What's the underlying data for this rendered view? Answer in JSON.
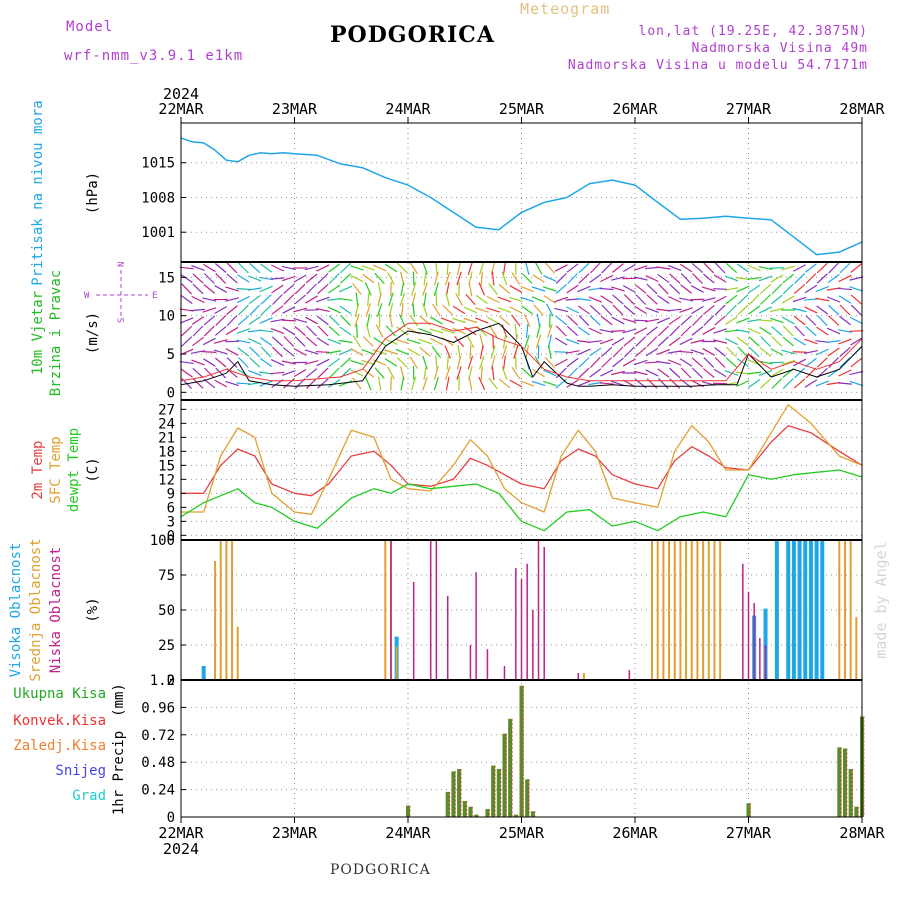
{
  "header": {
    "model_label": "Model",
    "model_name": "wrf-nmm_v3.9.1 e1km",
    "title": "PODGORICA",
    "subtitle": "Meteogram",
    "lonlat": "lon,lat (19.25E, 42.3875N)",
    "elevation": "Nadmorska Visina 49m",
    "model_elevation": "Nadmorska Visina u modelu 54.7171m",
    "footer": "PODGORICA",
    "watermark": "made by Angel"
  },
  "colors": {
    "pressure": "#1ea7e6",
    "wind_label": "#22bb22",
    "wind_speed_line": "#000000",
    "gust": "#ee3333",
    "temp2m": "#e84040",
    "sfc_temp": "#e0a030",
    "dewpt": "#22cc22",
    "cloud_high": "#1ea7e6",
    "cloud_mid": "#e0a030",
    "cloud_low": "#c0208a",
    "precip_total": "#22aa22",
    "precip_conv": "#ee3333",
    "precip_frozen": "#f08030",
    "snow": "#4444ee",
    "hail": "#22cccc",
    "purple_text": "#b040d0"
  },
  "time_axis": {
    "year": "2024",
    "ticks": [
      "22MAR",
      "23MAR",
      "24MAR",
      "25MAR",
      "26MAR",
      "27MAR",
      "28MAR"
    ]
  },
  "chart_data": [
    {
      "type": "line",
      "panel": "pressure",
      "ylabel_title": "Pritisak na nivou mora",
      "unit": "(hPa)",
      "yticks": [
        "1001",
        "1008",
        "1015"
      ],
      "ylim": [
        995,
        1023
      ],
      "x": [
        0,
        0.1,
        0.2,
        0.3,
        0.4,
        0.5,
        0.6,
        0.7,
        0.8,
        0.9,
        1.0,
        1.2,
        1.4,
        1.6,
        1.8,
        2.0,
        2.2,
        2.4,
        2.6,
        2.8,
        3.0,
        3.2,
        3.4,
        3.6,
        3.8,
        4.0,
        4.2,
        4.4,
        4.6,
        4.8,
        5.0,
        5.2,
        5.4,
        5.6,
        5.8,
        6.0
      ],
      "values": [
        1020,
        1019.2,
        1019,
        1017.5,
        1015.5,
        1015.2,
        1016.5,
        1017,
        1016.8,
        1017,
        1016.8,
        1016.5,
        1014.8,
        1014,
        1012,
        1010.5,
        1008,
        1005,
        1002,
        1001.5,
        1005,
        1007,
        1008,
        1010.8,
        1011.5,
        1010.5,
        1007,
        1003.6,
        1003.8,
        1004.2,
        1003.8,
        1003.5,
        1000,
        996.5,
        997,
        999
      ]
    },
    {
      "type": "line",
      "panel": "wind",
      "ylabel_title": "10m Vjetar",
      "ylabel_sub": "Brzina i Pravac",
      "unit": "(m/s)",
      "compass": [
        "N",
        "W",
        "E",
        "S"
      ],
      "yticks": [
        "0",
        "5",
        "10",
        "15"
      ],
      "ylim": [
        -1,
        17
      ],
      "series": [
        {
          "name": "wind_speed",
          "x": [
            0,
            0.2,
            0.4,
            0.5,
            0.6,
            0.8,
            1.0,
            1.3,
            1.6,
            1.8,
            2.0,
            2.2,
            2.4,
            2.6,
            2.8,
            3.0,
            3.1,
            3.2,
            3.4,
            3.5,
            3.6,
            3.8,
            4.0,
            4.2,
            4.5,
            4.7,
            4.9,
            5.0,
            5.2,
            5.4,
            5.6,
            5.8,
            6.0
          ],
          "values": [
            1,
            1.5,
            2.5,
            4,
            1.5,
            1,
            0.8,
            1,
            1.5,
            6,
            8,
            7.5,
            6.5,
            8,
            9,
            6,
            2,
            4,
            1.2,
            0.8,
            0.8,
            1,
            0.8,
            0.8,
            0.8,
            1,
            1,
            5,
            2,
            3,
            2,
            3,
            6
          ]
        },
        {
          "name": "wind_gust",
          "x": [
            0,
            0.2,
            0.4,
            0.6,
            0.8,
            1.0,
            1.4,
            1.6,
            1.8,
            2.0,
            2.2,
            2.4,
            2.6,
            2.8,
            3.0,
            3.2,
            3.4,
            3.6,
            3.8,
            4.0,
            4.4,
            4.8,
            5.0,
            5.2,
            5.4,
            5.6,
            5.8,
            6.0
          ],
          "values": [
            1.5,
            2,
            3,
            2,
            1.5,
            1.5,
            2,
            3,
            7,
            9,
            9,
            8,
            8.5,
            7,
            6,
            3,
            2,
            1.5,
            1.5,
            1.5,
            1.5,
            1.5,
            5,
            3,
            4,
            3,
            4,
            7
          ]
        }
      ]
    },
    {
      "type": "line",
      "panel": "temperature",
      "labels": [
        "2m Temp",
        "SFC Temp",
        "dewpt Temp"
      ],
      "unit": "(C)",
      "yticks": [
        "0",
        "3",
        "6",
        "9",
        "12",
        "15",
        "18",
        "21",
        "24",
        "27"
      ],
      "ylim": [
        -1,
        29
      ],
      "series": [
        {
          "name": "2m Temp",
          "x": [
            0,
            0.2,
            0.35,
            0.5,
            0.65,
            0.8,
            1.0,
            1.15,
            1.3,
            1.5,
            1.7,
            1.85,
            2.0,
            2.2,
            2.4,
            2.55,
            2.7,
            2.85,
            3.0,
            3.2,
            3.35,
            3.5,
            3.65,
            3.8,
            4.0,
            4.2,
            4.35,
            4.5,
            4.65,
            4.8,
            5.0,
            5.2,
            5.35,
            5.55,
            5.8,
            6.0
          ],
          "values": [
            9,
            9,
            15,
            18.5,
            17,
            11,
            9,
            8.5,
            11,
            17,
            18,
            15,
            11,
            10.5,
            12,
            16.5,
            15,
            13,
            11,
            10,
            16,
            18.5,
            17,
            13,
            11,
            10,
            16,
            19,
            17,
            14.5,
            14,
            20,
            23.5,
            22,
            18,
            15
          ]
        },
        {
          "name": "SFC Temp",
          "x": [
            0,
            0.2,
            0.35,
            0.5,
            0.65,
            0.8,
            1.0,
            1.15,
            1.3,
            1.5,
            1.7,
            1.85,
            2.0,
            2.2,
            2.4,
            2.55,
            2.7,
            2.85,
            3.0,
            3.2,
            3.35,
            3.5,
            3.65,
            3.8,
            4.0,
            4.2,
            4.35,
            4.5,
            4.65,
            4.8,
            5.0,
            5.2,
            5.35,
            5.55,
            5.8,
            6.0
          ],
          "values": [
            5,
            5,
            17,
            23,
            21,
            9,
            5,
            4.5,
            12,
            22.5,
            21,
            12,
            10,
            9.5,
            15,
            20.5,
            17,
            10,
            7,
            5,
            17,
            22.5,
            18,
            8,
            7,
            6,
            18,
            23.5,
            20,
            14,
            14,
            22,
            28,
            24,
            17,
            15
          ]
        },
        {
          "name": "dewpt Temp",
          "x": [
            0,
            0.2,
            0.35,
            0.5,
            0.65,
            0.8,
            1.0,
            1.2,
            1.5,
            1.7,
            1.85,
            2.0,
            2.2,
            2.4,
            2.6,
            2.8,
            3.0,
            3.2,
            3.4,
            3.6,
            3.8,
            4.0,
            4.2,
            4.4,
            4.6,
            4.8,
            5.0,
            5.2,
            5.4,
            5.6,
            5.8,
            6.0
          ],
          "values": [
            4,
            7,
            8.5,
            10,
            7,
            6,
            3,
            1.5,
            8,
            10,
            9,
            11,
            10,
            10.5,
            11,
            9,
            3,
            1,
            5,
            5.5,
            2,
            3,
            1,
            4,
            5,
            4,
            13,
            12,
            13,
            13.5,
            14,
            12.5
          ]
        }
      ]
    },
    {
      "type": "bar",
      "panel": "clouds",
      "labels": [
        "Visoka Oblacnost",
        "Srednja Oblacnost",
        "Niska Oblacnost"
      ],
      "unit": "(%)",
      "yticks": [
        "0",
        "25",
        "50",
        "75",
        "100"
      ],
      "ylim": [
        0,
        100
      ],
      "series": [
        {
          "name": "Visoka Oblacnost",
          "x": [
            0.2,
            1.9,
            5.05,
            5.15,
            5.25,
            5.35,
            5.4,
            5.45,
            5.5,
            5.55,
            5.6,
            5.65
          ],
          "values": [
            10,
            31,
            46,
            51,
            100,
            100,
            100,
            100,
            100,
            100,
            100,
            100
          ]
        },
        {
          "name": "Srednja Oblacnost",
          "x": [
            0.3,
            0.35,
            0.4,
            0.45,
            0.5,
            1.8,
            1.85,
            1.9,
            3.55,
            4.15,
            4.2,
            4.25,
            4.3,
            4.35,
            4.4,
            4.45,
            4.5,
            4.55,
            4.6,
            4.65,
            4.7,
            4.75,
            5.8,
            5.85,
            5.9,
            5.95
          ],
          "values": [
            85,
            100,
            100,
            100,
            38,
            100,
            100,
            24,
            5,
            100,
            100,
            100,
            100,
            100,
            100,
            100,
            100,
            100,
            100,
            100,
            100,
            100,
            100,
            100,
            100,
            45
          ]
        },
        {
          "name": "Niska Oblacnost",
          "x": [
            1.85,
            2.05,
            2.2,
            2.25,
            2.35,
            2.55,
            2.6,
            2.7,
            2.85,
            2.95,
            3.0,
            3.05,
            3.1,
            3.15,
            3.2,
            3.5,
            3.95,
            4.95,
            5.0,
            5.05,
            5.1,
            5.15
          ],
          "values": [
            100,
            70,
            100,
            100,
            60,
            25,
            77,
            22,
            10,
            80,
            72,
            83,
            50,
            100,
            95,
            5,
            7,
            83,
            63,
            55,
            30,
            25
          ]
        }
      ]
    },
    {
      "type": "bar",
      "panel": "precipitation",
      "labels": [
        "Ukupna Kisa",
        "Konvek.Kisa",
        "Zaledj.Kisa",
        "Snijeg",
        "Grad"
      ],
      "ylabel": "1hr Precip",
      "unit": "(mm)",
      "yticks": [
        "0",
        "0.24",
        "0.48",
        "0.72",
        "0.96",
        "1.2"
      ],
      "ylim": [
        0,
        1.2
      ],
      "series": [
        {
          "name": "Ukupna Kisa",
          "x": [
            2.0,
            2.35,
            2.4,
            2.45,
            2.5,
            2.55,
            2.6,
            2.7,
            2.75,
            2.8,
            2.85,
            2.9,
            2.95,
            3.0,
            3.05,
            3.1,
            5.0,
            5.8,
            5.85,
            5.9,
            5.95,
            6.0
          ],
          "values": [
            0.1,
            0.22,
            0.4,
            0.42,
            0.14,
            0.09,
            0.02,
            0.07,
            0.45,
            0.42,
            0.73,
            0.86,
            0.02,
            1.15,
            0.33,
            0.05,
            0.12,
            0.61,
            0.6,
            0.42,
            0.09,
            0.88
          ]
        }
      ]
    }
  ]
}
